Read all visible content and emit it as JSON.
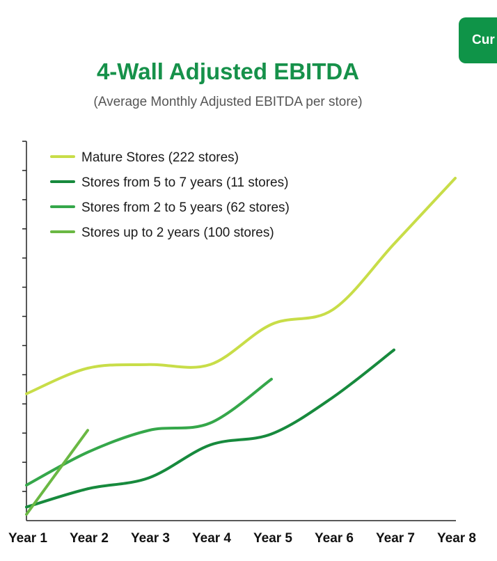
{
  "corner_button": {
    "label": "Cur"
  },
  "chart_data": {
    "type": "line",
    "title": "4-Wall Adjusted EBITDA",
    "subtitle": "(Average Monthly Adjusted EBITDA per store)",
    "xlabel": "",
    "ylabel": "",
    "categories": [
      "Year 1",
      "Year 2",
      "Year 3",
      "Year 4",
      "Year 5",
      "Year 6",
      "Year 7",
      "Year 8"
    ],
    "ylim": [
      0,
      100
    ],
    "y_tick_count": 13,
    "grid": false,
    "legend_position": "top-left",
    "series": [
      {
        "name": "Mature Stores (222 stores)",
        "color": "#c8dd48",
        "values": [
          33,
          40,
          41,
          41,
          52,
          56,
          74,
          92
        ]
      },
      {
        "name": "Stores from 5 to 7 years (11 stores)",
        "color": "#178a3d",
        "values": [
          2,
          7,
          10,
          19,
          22,
          32,
          45,
          null
        ]
      },
      {
        "name": "Stores from 2 to 5 years (62 stores)",
        "color": "#35a74a",
        "values": [
          8,
          17,
          23,
          25,
          37,
          null,
          null,
          null
        ]
      },
      {
        "name": "Stores up to 2 years (100 stores)",
        "color": "#6ab843",
        "values": [
          0,
          23,
          null,
          null,
          null,
          null,
          null,
          null
        ]
      }
    ]
  }
}
